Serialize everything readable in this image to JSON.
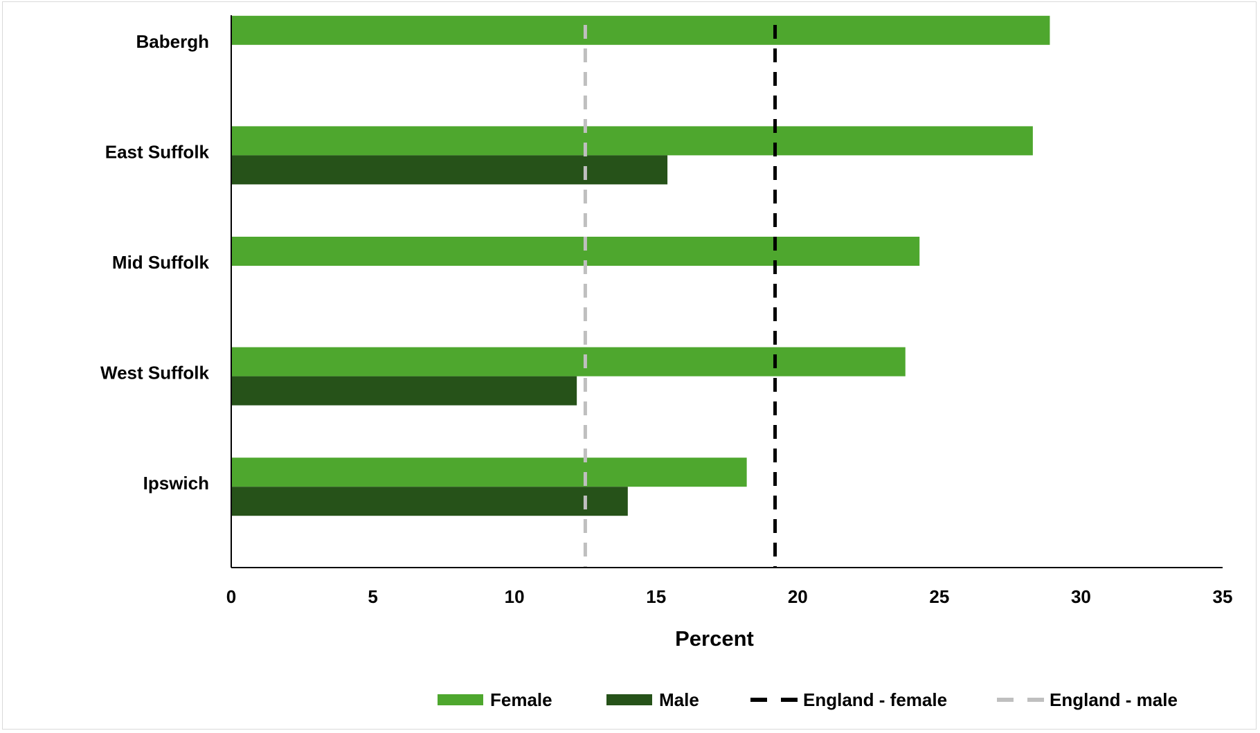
{
  "chart_data": {
    "type": "bar",
    "orientation": "horizontal",
    "categories": [
      "Babergh",
      "East Suffolk",
      "Mid Suffolk",
      "West Suffolk",
      "Ipswich"
    ],
    "series": [
      {
        "name": "Female",
        "color": "#4ea72e",
        "values": [
          28.9,
          28.3,
          24.3,
          23.8,
          18.2
        ]
      },
      {
        "name": "Male",
        "color": "#265219",
        "values": [
          null,
          15.4,
          null,
          12.2,
          14.0
        ]
      }
    ],
    "reference_lines": [
      {
        "name": "England - female",
        "color": "#000000",
        "style": "dashed",
        "value": 19.2
      },
      {
        "name": "England - male",
        "color": "#bfbfbf",
        "style": "dashed",
        "value": 12.5
      }
    ],
    "xlabel": "Percent",
    "ylabel": "",
    "xlim": [
      0,
      35
    ],
    "xticks": [
      "0",
      "5",
      "10",
      "15",
      "20",
      "25",
      "30",
      "35"
    ],
    "grid": false,
    "legend_position": "bottom"
  }
}
